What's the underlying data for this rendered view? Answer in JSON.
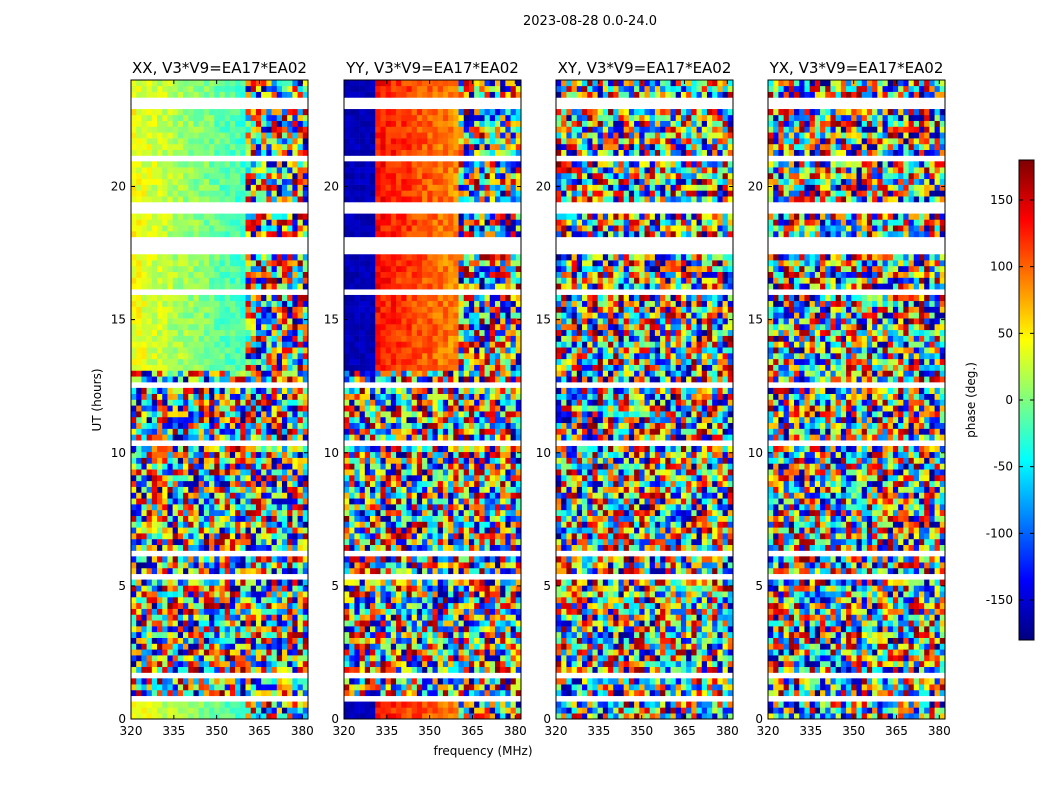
{
  "figure": {
    "suptitle": "2023-08-28 0.0-24.0"
  },
  "chart_data": {
    "type": "heatmap",
    "x_label": "frequency (MHz)",
    "y_label": "UT (hours)",
    "colorbar_label": "phase (deg.)",
    "xlim": [
      320,
      382
    ],
    "ylim": [
      0,
      24
    ],
    "x_ticks": [
      320,
      335,
      350,
      365,
      380
    ],
    "y_ticks": [
      0,
      5,
      10,
      15,
      20
    ],
    "colorbar_range": [
      -180,
      180
    ],
    "colorbar_ticks": [
      150,
      100,
      50,
      0,
      -50,
      -100,
      -150
    ],
    "colormap": "jet",
    "colors": {
      "jet": [
        "#00007f",
        "#0000ff",
        "#007fff",
        "#00ffff",
        "#7fff7f",
        "#ffff00",
        "#ff7f00",
        "#ff0000",
        "#7f0000"
      ],
      "flagged": "#ffffff"
    },
    "panels": [
      {
        "title": "XX, V3*V9=EA17*EA02",
        "structured_phase_deg": 40
      },
      {
        "title": "YY, V3*V9=EA17*EA02",
        "structured_phase_deg": 150
      },
      {
        "title": "XY, V3*V9=EA17*EA02",
        "structured_phase_deg": null
      },
      {
        "title": "YX, V3*V9=EA17*EA02",
        "structured_phase_deg": null
      }
    ]
  }
}
